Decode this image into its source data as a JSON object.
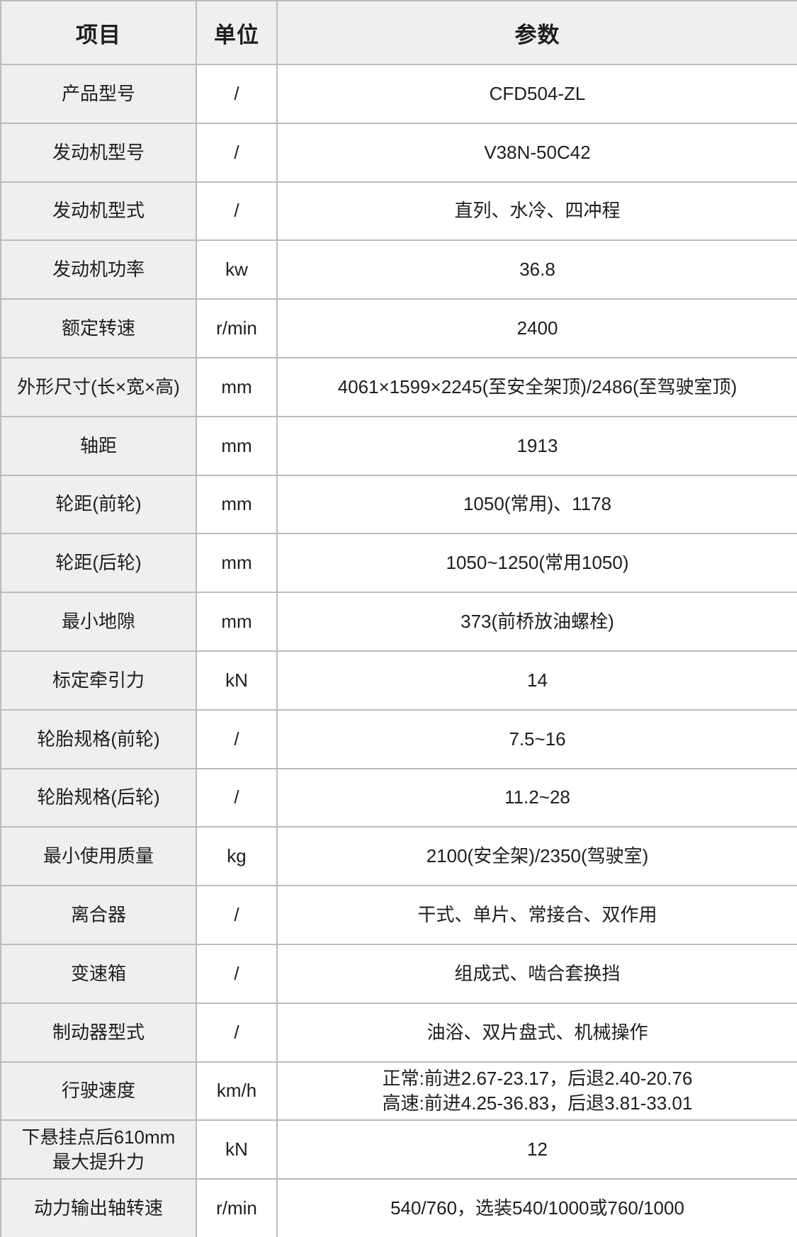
{
  "table": {
    "columns": {
      "item": "项目",
      "unit": "单位",
      "value": "参数"
    },
    "rows": [
      {
        "item": "产品型号",
        "unit": "/",
        "value": "CFD504-ZL"
      },
      {
        "item": "发动机型号",
        "unit": "/",
        "value": "V38N-50C42"
      },
      {
        "item": "发动机型式",
        "unit": "/",
        "value": "直列、水冷、四冲程"
      },
      {
        "item": "发动机功率",
        "unit": "kw",
        "value": "36.8"
      },
      {
        "item": "额定转速",
        "unit": "r/min",
        "value": "2400"
      },
      {
        "item": "外形尺寸(长×宽×高)",
        "unit": "mm",
        "value": "4061×1599×2245(至安全架顶)/2486(至驾驶室顶)"
      },
      {
        "item": "轴距",
        "unit": "mm",
        "value": "1913"
      },
      {
        "item": "轮距(前轮)",
        "unit": "mm",
        "value": "1050(常用)、1178"
      },
      {
        "item": "轮距(后轮)",
        "unit": "mm",
        "value": "1050~1250(常用1050)"
      },
      {
        "item": "最小地隙",
        "unit": "mm",
        "value": "373(前桥放油螺栓)"
      },
      {
        "item": "标定牵引力",
        "unit": "kN",
        "value": "14"
      },
      {
        "item": "轮胎规格(前轮)",
        "unit": "/",
        "value": "7.5~16"
      },
      {
        "item": "轮胎规格(后轮)",
        "unit": "/",
        "value": "11.2~28"
      },
      {
        "item": "最小使用质量",
        "unit": "kg",
        "value": "2100(安全架)/2350(驾驶室)"
      },
      {
        "item": "离合器",
        "unit": "/",
        "value": "干式、单片、常接合、双作用"
      },
      {
        "item": "变速箱",
        "unit": "/",
        "value": "组成式、啮合套换挡"
      },
      {
        "item": "制动器型式",
        "unit": "/",
        "value": "油浴、双片盘式、机械操作"
      },
      {
        "item": "行驶速度",
        "unit": "km/h",
        "value": "正常:前进2.67-23.17，后退2.40-20.76\n高速:前进4.25-36.83，后退3.81-33.01"
      },
      {
        "item": "下悬挂点后610mm\n最大提升力",
        "unit": "kN",
        "value": "12"
      },
      {
        "item": "动力输出轴转速",
        "unit": "r/min",
        "value": "540/760，选装540/1000或760/1000"
      }
    ]
  },
  "colors": {
    "header_bg": "#efefef",
    "label_bg": "#efefef",
    "cell_bg": "#ffffff",
    "border": "#bcbcbc",
    "text": "#1e1e1e"
  }
}
